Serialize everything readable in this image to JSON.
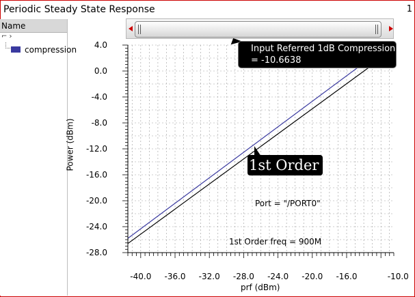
{
  "window": {
    "title": "Periodic Steady State Response",
    "number": "1"
  },
  "sidebar": {
    "header": "Name",
    "tree_toggle": "⌐     ›",
    "legend_label": "compression",
    "legend_color": "#3a3aa0"
  },
  "chart_data": {
    "type": "line",
    "xlabel": "prf (dBm)",
    "ylabel": "Power (dBm)",
    "xlim": [
      -41.5,
      -10.5
    ],
    "ylim": [
      -28.0,
      4.0
    ],
    "xticks": [
      -40.0,
      -36.0,
      -32.0,
      -28.0,
      -24.0,
      -20.0,
      -16.0,
      -10.0
    ],
    "yticks": [
      4.0,
      0.0,
      -4.0,
      -8.0,
      -12.0,
      -16.0,
      -20.0,
      -24.0,
      -28.0
    ],
    "grid": true,
    "series": [
      {
        "name": "compression",
        "color": "#3a3aa0",
        "x": [
          -41.5,
          -12.0
        ],
        "y": [
          -25.8,
          3.2
        ]
      },
      {
        "color": "#000000",
        "x": [
          -41.5,
          -12.0
        ],
        "y": [
          -26.6,
          1.9
        ]
      }
    ],
    "annotations": {
      "compression_label": "Input Referred 1dB Compression",
      "compression_value": "= -10.6638",
      "order_label": "1st Order",
      "port_note": "Port = \"/PORT0\"",
      "freq_note": "1st Order freq = 900M"
    }
  }
}
